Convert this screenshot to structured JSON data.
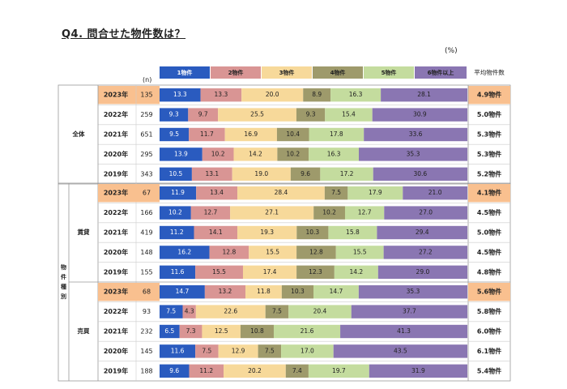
{
  "title": "Q4. 問合せた物件数は？",
  "unit": "(%)",
  "n_label": "(n)",
  "avg_header": "平均物件数",
  "colors": [
    "#2a5bbf",
    "#d99594",
    "#f7d99a",
    "#9e9a6b",
    "#c4dc9e",
    "#8a76b2"
  ],
  "highlight_color": "#f9c08f",
  "chart_data": {
    "type": "bar",
    "stacked": true,
    "orientation": "horizontal",
    "categories_legend": [
      "1物件",
      "2物件",
      "3物件",
      "4物件",
      "5物件",
      "6物件以上"
    ],
    "groups": [
      {
        "name": "全体",
        "subgroup": "",
        "rows": [
          {
            "year": "2023年",
            "n": "135",
            "values": [
              13.3,
              13.3,
              20.0,
              8.9,
              16.3,
              28.1
            ],
            "avg": "4.9物件",
            "highlight": true
          },
          {
            "year": "2022年",
            "n": "259",
            "values": [
              9.3,
              9.7,
              25.5,
              9.3,
              15.4,
              30.9
            ],
            "avg": "5.0物件",
            "highlight": false
          },
          {
            "year": "2021年",
            "n": "651",
            "values": [
              9.5,
              11.7,
              16.9,
              10.4,
              17.8,
              33.6
            ],
            "avg": "5.3物件",
            "highlight": false
          },
          {
            "year": "2020年",
            "n": "295",
            "values": [
              13.9,
              10.2,
              14.2,
              10.2,
              16.3,
              35.3
            ],
            "avg": "5.3物件",
            "highlight": false
          },
          {
            "year": "2019年",
            "n": "343",
            "values": [
              10.5,
              13.1,
              19.0,
              9.6,
              17.2,
              30.6
            ],
            "avg": "5.2物件",
            "highlight": false
          }
        ]
      },
      {
        "name": "物件種別",
        "subgroup": "賃貸",
        "rows": [
          {
            "year": "2023年",
            "n": "67",
            "values": [
              11.9,
              13.4,
              28.4,
              7.5,
              17.9,
              21.0
            ],
            "avg": "4.1物件",
            "highlight": true
          },
          {
            "year": "2022年",
            "n": "166",
            "values": [
              10.2,
              12.7,
              27.1,
              10.2,
              12.7,
              27.0
            ],
            "avg": "4.5物件",
            "highlight": false
          },
          {
            "year": "2021年",
            "n": "419",
            "values": [
              11.2,
              14.1,
              19.3,
              10.3,
              15.8,
              29.4
            ],
            "avg": "5.0物件",
            "highlight": false
          },
          {
            "year": "2020年",
            "n": "148",
            "values": [
              16.2,
              12.8,
              15.5,
              12.8,
              15.5,
              27.2
            ],
            "avg": "4.5物件",
            "highlight": false
          },
          {
            "year": "2019年",
            "n": "155",
            "values": [
              11.6,
              15.5,
              17.4,
              12.3,
              14.2,
              29.0
            ],
            "avg": "4.8物件",
            "highlight": false
          }
        ]
      },
      {
        "name": "物件種別",
        "subgroup": "売買",
        "rows": [
          {
            "year": "2023年",
            "n": "68",
            "values": [
              14.7,
              13.2,
              11.8,
              10.3,
              14.7,
              35.3
            ],
            "avg": "5.6物件",
            "highlight": true
          },
          {
            "year": "2022年",
            "n": "93",
            "values": [
              7.5,
              4.3,
              22.6,
              7.5,
              20.4,
              37.7
            ],
            "avg": "5.8物件",
            "highlight": false
          },
          {
            "year": "2021年",
            "n": "232",
            "values": [
              6.5,
              7.3,
              12.5,
              10.8,
              21.6,
              41.3
            ],
            "avg": "6.0物件",
            "highlight": false
          },
          {
            "year": "2020年",
            "n": "145",
            "values": [
              11.6,
              7.5,
              12.9,
              7.5,
              17.0,
              43.5
            ],
            "avg": "6.1物件",
            "highlight": false
          },
          {
            "year": "2019年",
            "n": "188",
            "values": [
              9.6,
              11.2,
              20.2,
              7.4,
              19.7,
              31.9
            ],
            "avg": "5.4物件",
            "highlight": false
          }
        ]
      }
    ]
  }
}
